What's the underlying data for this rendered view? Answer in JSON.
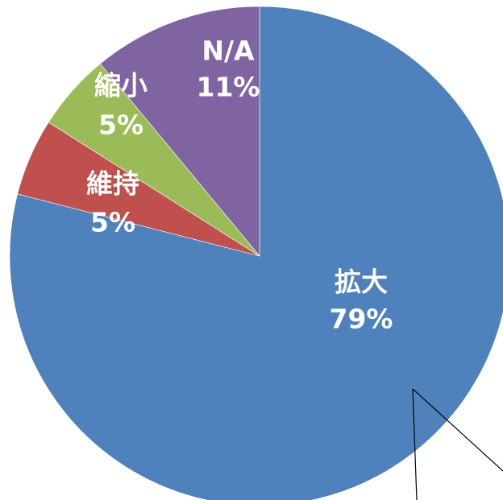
{
  "chart_data": {
    "type": "pie",
    "categories": [
      "拡大",
      "維持",
      "縮小",
      "N/A"
    ],
    "values": [
      79,
      5,
      5,
      11
    ],
    "value_labels": [
      "79%",
      "5%",
      "5%",
      "11%"
    ],
    "colors": [
      "#4f81bd",
      "#c0504d",
      "#9bbb59",
      "#8064a2"
    ]
  }
}
